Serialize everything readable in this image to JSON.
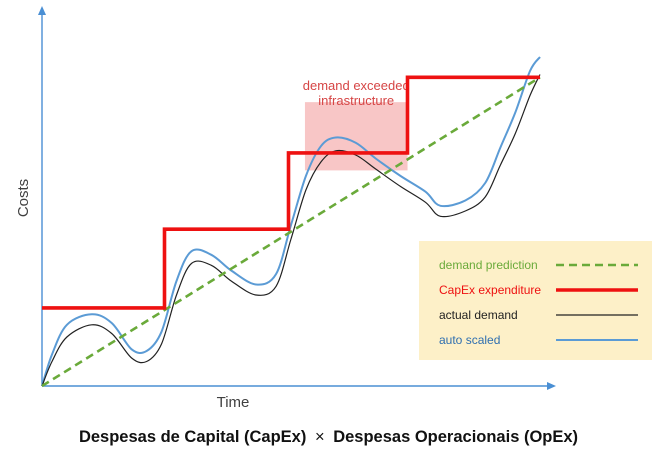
{
  "chart_data": {
    "type": "line",
    "xlabel": "Time",
    "ylabel": "Costs",
    "grid": false,
    "legend_position": "bottom-right",
    "annotation": {
      "lines": [
        "demand exceeded",
        "infrastructure"
      ],
      "x_range": [
        0.528,
        0.734
      ],
      "y_range": [
        0.616,
        0.811
      ]
    },
    "series": [
      {
        "name": "demand prediction",
        "style": "dashed",
        "color": "#6aaa3a",
        "x": [
          0,
          1
        ],
        "y": [
          0,
          0.882
        ]
      },
      {
        "name": "CapEx expenditure",
        "style": "step",
        "color": "#ee1111",
        "x": [
          0,
          0.246,
          0.246,
          0.495,
          0.495,
          0.734,
          0.734,
          1
        ],
        "y": [
          0.223,
          0.223,
          0.448,
          0.448,
          0.666,
          0.666,
          0.882,
          0.882
        ]
      },
      {
        "name": "actual demand",
        "style": "solid",
        "color": "#222222",
        "x": [
          0,
          0.02,
          0.05,
          0.1,
          0.14,
          0.18,
          0.21,
          0.24,
          0.27,
          0.3,
          0.34,
          0.38,
          0.43,
          0.47,
          0.5,
          0.53,
          0.56,
          0.59,
          0.63,
          0.67,
          0.72,
          0.77,
          0.8,
          0.85,
          0.89,
          0.92,
          0.95,
          0.98,
          1.0
        ],
        "y": [
          0,
          0.07,
          0.14,
          0.175,
          0.15,
          0.08,
          0.07,
          0.12,
          0.26,
          0.35,
          0.345,
          0.3,
          0.26,
          0.285,
          0.42,
          0.56,
          0.64,
          0.672,
          0.66,
          0.62,
          0.57,
          0.525,
          0.485,
          0.5,
          0.54,
          0.63,
          0.72,
          0.83,
          0.89
        ]
      },
      {
        "name": "auto scaled",
        "style": "solid",
        "color": "#5b9bd5",
        "x": [
          0,
          0.02,
          0.05,
          0.1,
          0.14,
          0.18,
          0.21,
          0.24,
          0.27,
          0.3,
          0.34,
          0.38,
          0.43,
          0.47,
          0.5,
          0.53,
          0.56,
          0.59,
          0.63,
          0.67,
          0.72,
          0.77,
          0.8,
          0.85,
          0.89,
          0.92,
          0.95,
          0.98,
          1.0
        ],
        "y": [
          0,
          0.09,
          0.175,
          0.205,
          0.18,
          0.105,
          0.1,
          0.155,
          0.3,
          0.385,
          0.375,
          0.33,
          0.29,
          0.32,
          0.46,
          0.6,
          0.685,
          0.71,
          0.695,
          0.65,
          0.6,
          0.555,
          0.515,
          0.53,
          0.58,
          0.68,
          0.78,
          0.9,
          0.94
        ]
      }
    ]
  },
  "caption": {
    "left": "Despesas de Capital (CapEx)",
    "symbol": "×",
    "right": "Despesas Operacionais (OpEx)"
  }
}
